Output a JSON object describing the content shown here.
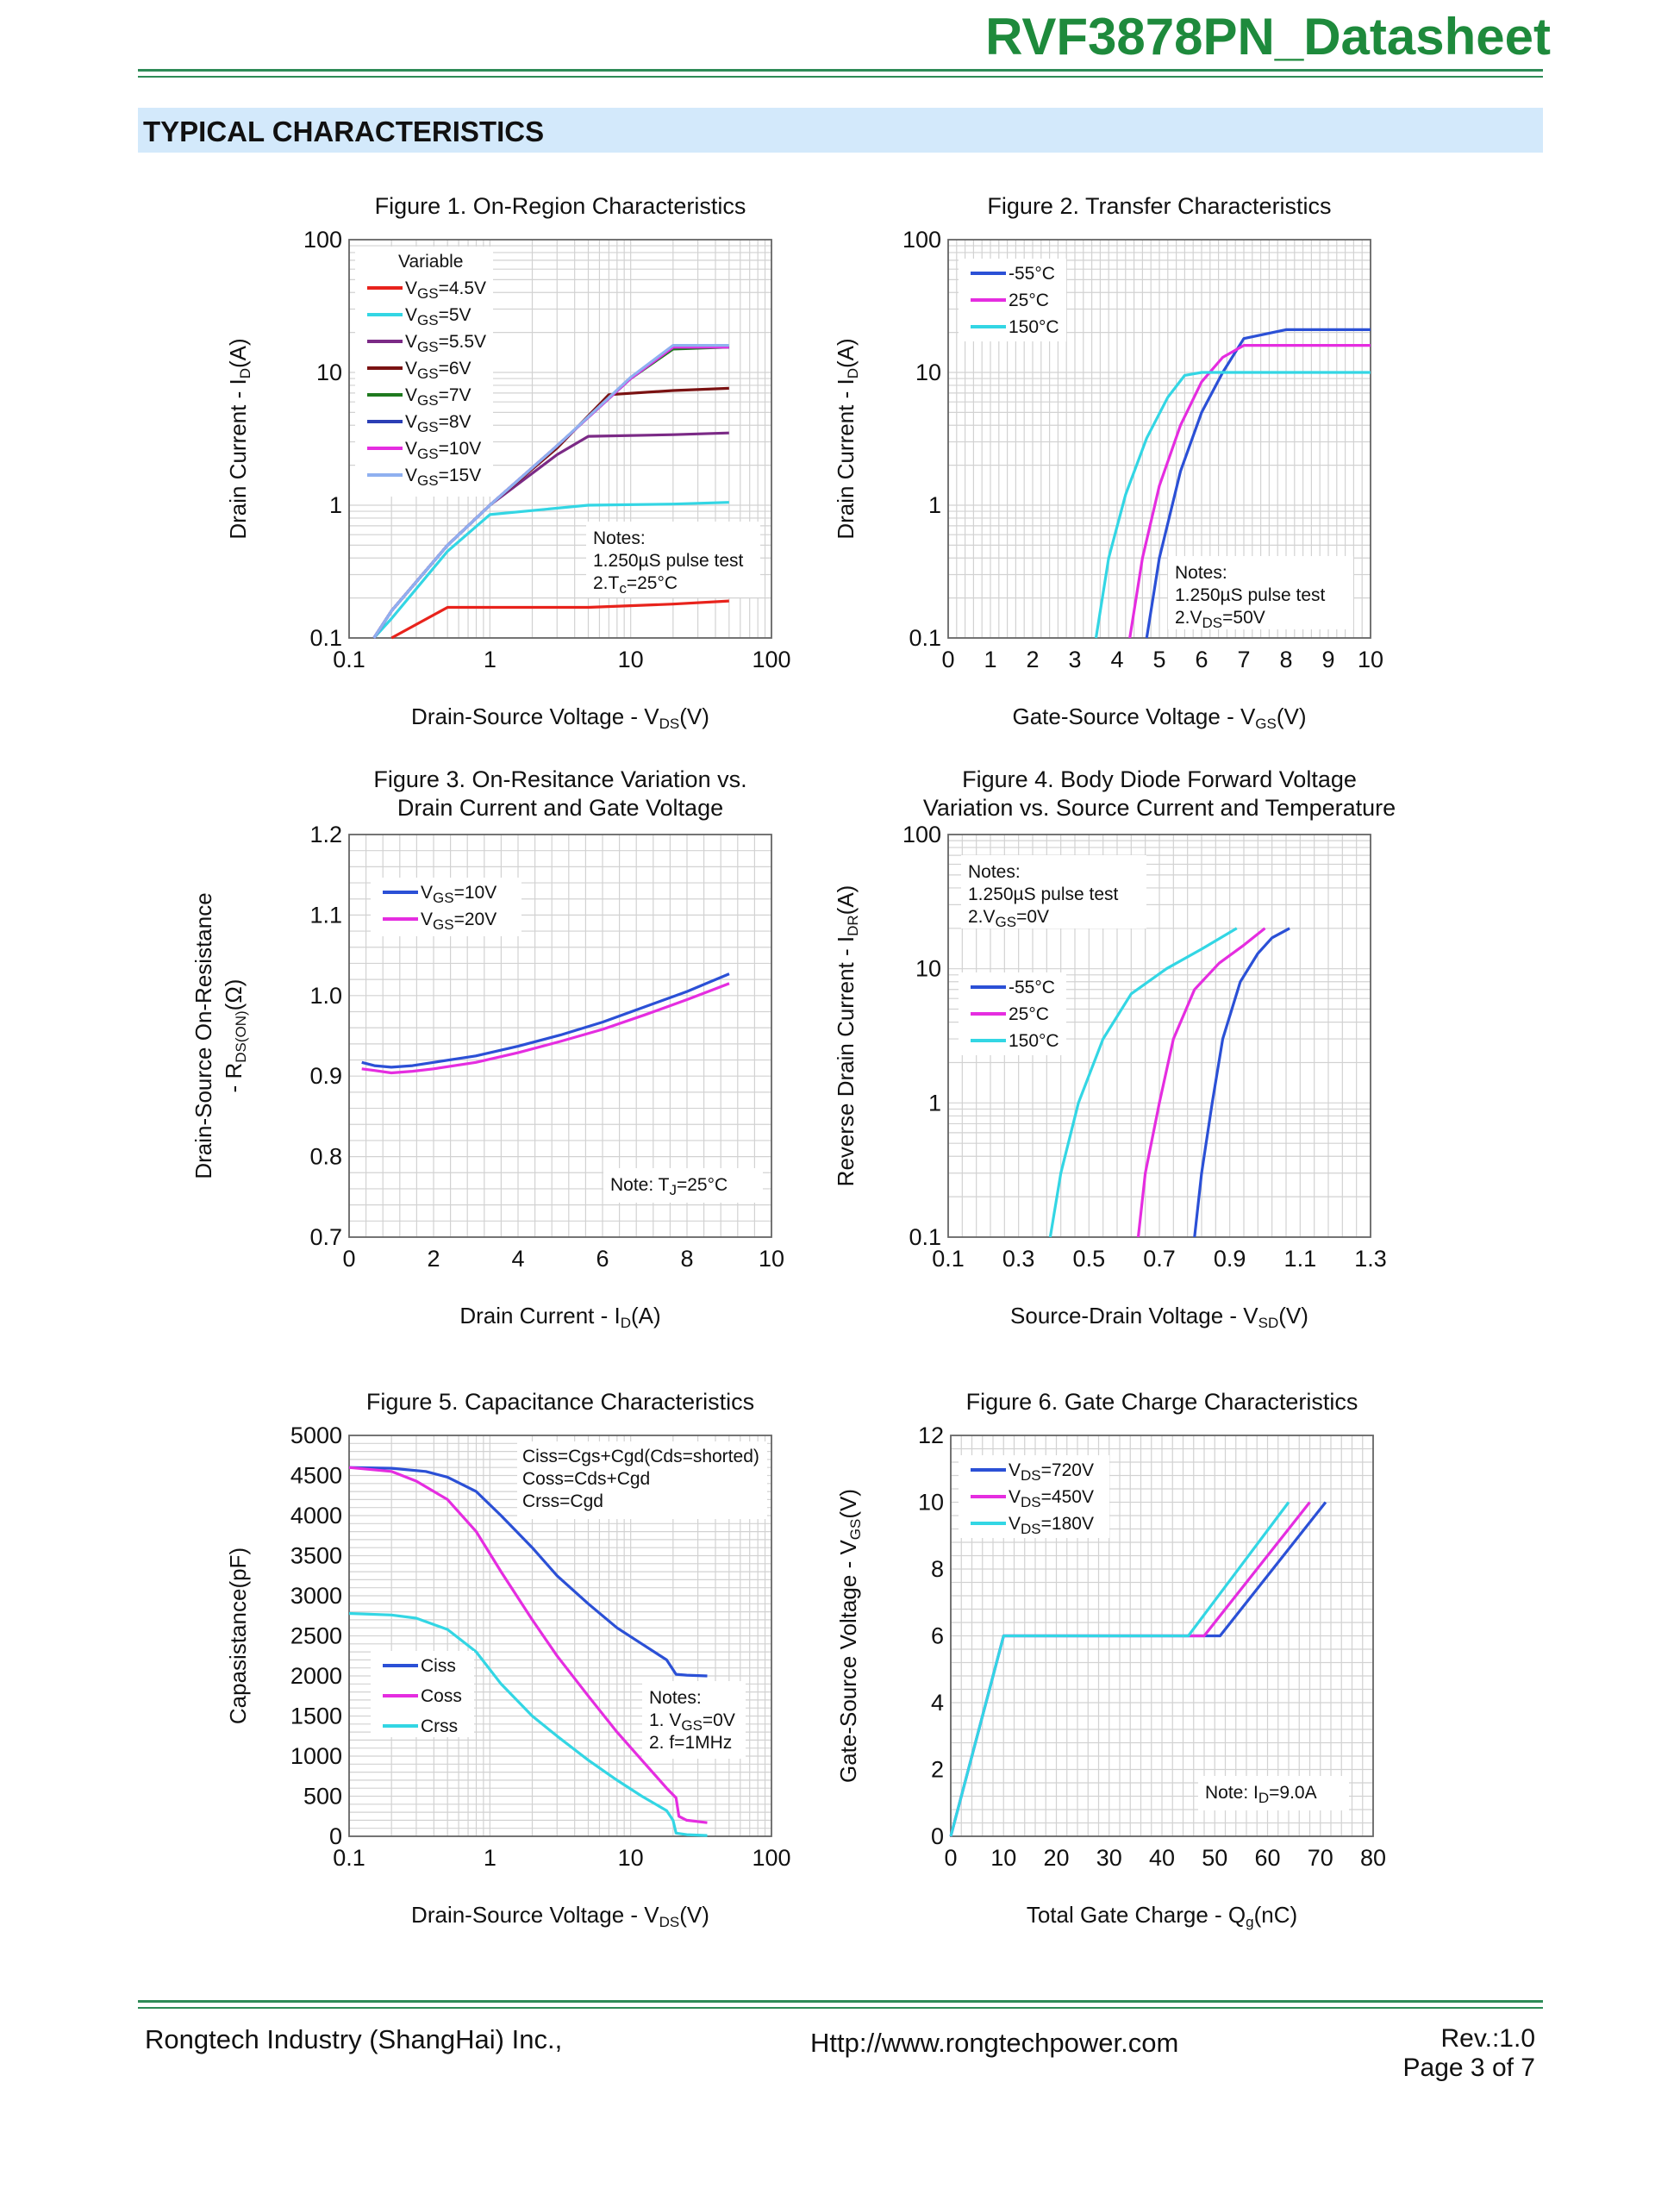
{
  "header": {
    "doc_title": "RVF3878PN_Datasheet",
    "section_title": "TYPICAL CHARACTERISTICS"
  },
  "footer": {
    "company": "Rongtech Industry (ShangHai) Inc.,",
    "url": "Http://www.rongtechpower.com",
    "rev": "Rev.:1.0",
    "page": "Page  3  of  7"
  },
  "chart_data": [
    {
      "id": "fig1",
      "type": "line",
      "title": "Figure 1. On-Region Characteristics",
      "xlabel": "Drain-Source Voltage  -  V",
      "xlabel_sub": "DS",
      "xlabel_tail": "(V)",
      "ylabel": "Drain Current  -  I",
      "ylabel_sub": "D",
      "ylabel_tail": "(A)",
      "xscale": "log",
      "yscale": "log",
      "xlim": [
        0.1,
        100
      ],
      "ylim": [
        0.1,
        100
      ],
      "xticks": [
        0.1,
        1,
        10,
        100
      ],
      "xtick_labels": [
        "0.1",
        "1",
        "10",
        "100"
      ],
      "yticks": [
        0.1,
        1,
        10,
        100
      ],
      "ytick_labels": [
        "0.1",
        "1",
        "10",
        "100"
      ],
      "legend_title": "Variable",
      "notes": [
        "Notes:",
        "1.250µS pulse test",
        "2.Tc=25°C"
      ],
      "notes_position": "bottom-right",
      "series": [
        {
          "name": "VGS=4.5V",
          "color": "#e8231c",
          "x": [
            0.2,
            0.5,
            1,
            5,
            20,
            50
          ],
          "y": [
            0.1,
            0.17,
            0.17,
            0.17,
            0.18,
            0.19
          ]
        },
        {
          "name": "VGS=5V",
          "color": "#33d6e4",
          "x": [
            0.15,
            0.2,
            0.5,
            1,
            5,
            20,
            50
          ],
          "y": [
            0.1,
            0.14,
            0.45,
            0.85,
            1.0,
            1.02,
            1.05
          ]
        },
        {
          "name": "VGS=5.5V",
          "color": "#7b2a86",
          "x": [
            0.15,
            0.2,
            0.5,
            1,
            3,
            5,
            20,
            50
          ],
          "y": [
            0.1,
            0.16,
            0.5,
            1.0,
            2.4,
            3.3,
            3.4,
            3.5
          ]
        },
        {
          "name": "VGS=6V",
          "color": "#7a1212",
          "x": [
            0.15,
            0.2,
            0.5,
            1,
            3,
            7,
            20,
            50
          ],
          "y": [
            0.1,
            0.16,
            0.5,
            1.0,
            2.7,
            6.8,
            7.3,
            7.6
          ]
        },
        {
          "name": "VGS=7V",
          "color": "#1f7a1f",
          "x": [
            0.15,
            0.2,
            0.5,
            1,
            3,
            10,
            20,
            50
          ],
          "y": [
            0.1,
            0.16,
            0.5,
            1.0,
            2.8,
            9.0,
            15,
            15.5
          ]
        },
        {
          "name": "VGS=8V",
          "color": "#2b3fb5",
          "x": [
            0.15,
            0.2,
            0.5,
            1,
            3,
            10,
            20,
            50
          ],
          "y": [
            0.1,
            0.16,
            0.5,
            1.0,
            2.8,
            9.0,
            15.5,
            15.5
          ]
        },
        {
          "name": "VGS=10V",
          "color": "#e52de0",
          "x": [
            0.15,
            0.2,
            0.5,
            1,
            3,
            10,
            20,
            50
          ],
          "y": [
            0.1,
            0.16,
            0.5,
            1.0,
            2.8,
            9.0,
            15.5,
            15.5
          ]
        },
        {
          "name": "VGS=15V",
          "color": "#8fb0f0",
          "x": [
            0.15,
            0.2,
            0.5,
            1,
            3,
            10,
            20,
            50
          ],
          "y": [
            0.1,
            0.16,
            0.5,
            1.0,
            2.8,
            9.2,
            16,
            16
          ]
        }
      ]
    },
    {
      "id": "fig2",
      "type": "line",
      "title": "Figure 2. Transfer Characteristics",
      "xlabel": "Gate-Source Voltage  -  V",
      "xlabel_sub": "GS",
      "xlabel_tail": "(V)",
      "ylabel": "Drain Current  -  I",
      "ylabel_sub": "D",
      "ylabel_tail": "(A)",
      "xscale": "linear",
      "yscale": "log",
      "xlim": [
        0,
        10
      ],
      "ylim": [
        0.1,
        100
      ],
      "xticks": [
        0,
        1,
        2,
        3,
        4,
        5,
        6,
        7,
        8,
        9,
        10
      ],
      "xtick_labels": [
        "0",
        "1",
        "2",
        "3",
        "4",
        "5",
        "6",
        "7",
        "8",
        "9",
        "10"
      ],
      "yticks": [
        0.1,
        1,
        10,
        100
      ],
      "ytick_labels": [
        "0.1",
        "1",
        "10",
        "100"
      ],
      "notes": [
        "Notes:",
        "1.250µS pulse test",
        "2.VDS=50V"
      ],
      "notes_position": "bottom-right",
      "series": [
        {
          "name": "-55°C",
          "color": "#2b50d6",
          "x": [
            4.7,
            5.0,
            5.5,
            6.0,
            6.5,
            7.0,
            8.0,
            10.0
          ],
          "y": [
            0.1,
            0.4,
            1.8,
            5.0,
            10,
            18,
            21,
            21
          ]
        },
        {
          "name": "25°C",
          "color": "#e52de0",
          "x": [
            4.3,
            4.6,
            5.0,
            5.5,
            6.0,
            6.5,
            7.0,
            10.0
          ],
          "y": [
            0.1,
            0.4,
            1.4,
            4.0,
            8.5,
            13,
            16,
            16
          ]
        },
        {
          "name": "150°C",
          "color": "#33d6e4",
          "x": [
            3.5,
            3.8,
            4.2,
            4.7,
            5.2,
            5.6,
            6.0,
            10.0
          ],
          "y": [
            0.1,
            0.4,
            1.2,
            3.2,
            6.5,
            9.5,
            10,
            10
          ]
        }
      ]
    },
    {
      "id": "fig3",
      "type": "line",
      "title": "Figure 3. On-Resitance Variation vs.",
      "title2": "Drain Current and Gate Voltage",
      "xlabel": "Drain Current  -  I",
      "xlabel_sub": "D",
      "xlabel_tail": "(A)",
      "ylabel": "Drain-Source On-Resistance",
      "ylabel2": "-  R",
      "ylabel2_sub": "DS(ON)",
      "ylabel2_tail": "(Ω)",
      "xscale": "linear",
      "yscale": "linear",
      "xlim": [
        0,
        10
      ],
      "ylim": [
        0.7,
        1.2
      ],
      "xticks": [
        0,
        2,
        4,
        6,
        8,
        10
      ],
      "xtick_labels": [
        "0",
        "2",
        "4",
        "6",
        "8",
        "10"
      ],
      "yticks": [
        0.7,
        0.8,
        0.9,
        1.0,
        1.1,
        1.2
      ],
      "ytick_labels": [
        "0.7",
        "0.8",
        "0.9",
        "1.0",
        "1.1",
        "1.2"
      ],
      "notes": [
        "Note: TJ=25°C"
      ],
      "notes_position": "bottom-right",
      "series": [
        {
          "name": "VGS=10V",
          "color": "#2b50d6",
          "x": [
            0.3,
            0.6,
            1.0,
            1.5,
            2.0,
            3.0,
            4.0,
            5.0,
            6.0,
            7.0,
            8.0,
            9.0
          ],
          "y": [
            0.917,
            0.913,
            0.911,
            0.913,
            0.917,
            0.925,
            0.937,
            0.951,
            0.967,
            0.986,
            1.005,
            1.027
          ]
        },
        {
          "name": "VGS=20V",
          "color": "#e52de0",
          "x": [
            0.3,
            0.6,
            1.0,
            1.5,
            2.0,
            3.0,
            4.0,
            5.0,
            6.0,
            7.0,
            8.0,
            9.0
          ],
          "y": [
            0.909,
            0.907,
            0.904,
            0.906,
            0.909,
            0.917,
            0.929,
            0.943,
            0.958,
            0.976,
            0.995,
            1.015
          ]
        }
      ]
    },
    {
      "id": "fig4",
      "type": "line",
      "title": "Figure 4. Body Diode Forward Voltage",
      "title2": "Variation vs. Source Current and Temperature",
      "xlabel": "Source-Drain Voltage  -  V",
      "xlabel_sub": "SD",
      "xlabel_tail": "(V)",
      "ylabel": "Reverse Drain Current  -  I",
      "ylabel_sub": "DR",
      "ylabel_tail": "(A)",
      "xscale": "linear",
      "yscale": "log",
      "xlim": [
        0.1,
        1.3
      ],
      "ylim": [
        0.1,
        100
      ],
      "xticks": [
        0.1,
        0.3,
        0.5,
        0.7,
        0.9,
        1.1,
        1.3
      ],
      "xtick_labels": [
        "0.1",
        "0.3",
        "0.5",
        "0.7",
        "0.9",
        "1.1",
        "1.3"
      ],
      "yticks": [
        0.1,
        1,
        10,
        100
      ],
      "ytick_labels": [
        "0.1",
        "1",
        "10",
        "100"
      ],
      "notes": [
        "Notes:",
        "1.250µS pulse test",
        "2.VGS=0V"
      ],
      "notes_position": "top-left",
      "series": [
        {
          "name": "-55°C",
          "color": "#2b50d6",
          "x": [
            0.8,
            0.82,
            0.85,
            0.88,
            0.93,
            0.98,
            1.02,
            1.07
          ],
          "y": [
            0.1,
            0.3,
            1.0,
            3.0,
            8.0,
            13,
            17,
            20
          ]
        },
        {
          "name": "25°C",
          "color": "#e52de0",
          "x": [
            0.64,
            0.66,
            0.7,
            0.74,
            0.8,
            0.87,
            0.94,
            1.0
          ],
          "y": [
            0.1,
            0.3,
            1.0,
            3.0,
            7.0,
            11,
            15,
            20
          ]
        },
        {
          "name": "150°C",
          "color": "#33d6e4",
          "x": [
            0.39,
            0.42,
            0.47,
            0.54,
            0.62,
            0.72,
            0.82,
            0.92
          ],
          "y": [
            0.1,
            0.3,
            1.0,
            3.0,
            6.5,
            10,
            14,
            20
          ]
        }
      ]
    },
    {
      "id": "fig5",
      "type": "line",
      "title": "Figure 5. Capacitance Characteristics",
      "xlabel": "Drain-Source Voltage  -  V",
      "xlabel_sub": "DS",
      "xlabel_tail": "(V)",
      "ylabel": "Capasistance(pF)",
      "xscale": "log",
      "yscale": "linear",
      "xlim": [
        0.1,
        100
      ],
      "ylim": [
        0,
        5000
      ],
      "xticks": [
        0.1,
        1,
        10,
        100
      ],
      "xtick_labels": [
        "0.1",
        "1",
        "10",
        "100"
      ],
      "yticks": [
        0,
        500,
        1000,
        1500,
        2000,
        2500,
        3000,
        3500,
        4000,
        4500,
        5000
      ],
      "ytick_labels": [
        "0",
        "500",
        "1000",
        "1500",
        "2000",
        "2500",
        "3000",
        "3500",
        "4000",
        "4500",
        "5000"
      ],
      "definitions": [
        "Ciss=Cgs+Cgd(Cds=shorted)",
        "Coss=Cds+Cgd",
        "Crss=Cgd"
      ],
      "notes": [
        "Notes:",
        "1. VGS=0V",
        "2. f=1MHz"
      ],
      "notes_position": "bottom-right",
      "series": [
        {
          "name": "Ciss",
          "color": "#2b50d6",
          "x": [
            0.1,
            0.2,
            0.35,
            0.5,
            0.8,
            1.2,
            2,
            3,
            5,
            8,
            12,
            18,
            21,
            25,
            35
          ],
          "y": [
            4600,
            4590,
            4550,
            4480,
            4300,
            4000,
            3600,
            3250,
            2900,
            2600,
            2400,
            2200,
            2020,
            2010,
            2000
          ]
        },
        {
          "name": "Coss",
          "color": "#e52de0",
          "x": [
            0.1,
            0.2,
            0.3,
            0.5,
            0.8,
            1.2,
            2,
            3,
            5,
            8,
            12,
            18,
            21,
            22,
            25,
            35
          ],
          "y": [
            4600,
            4550,
            4430,
            4200,
            3800,
            3300,
            2700,
            2250,
            1750,
            1300,
            950,
            600,
            480,
            250,
            200,
            170
          ]
        },
        {
          "name": "Crss",
          "color": "#33d6e4",
          "x": [
            0.1,
            0.2,
            0.3,
            0.5,
            0.8,
            1.2,
            2,
            3,
            5,
            8,
            12,
            18,
            20,
            21,
            25,
            35
          ],
          "y": [
            2780,
            2760,
            2720,
            2580,
            2300,
            1900,
            1500,
            1250,
            950,
            700,
            500,
            320,
            200,
            40,
            20,
            10
          ]
        }
      ]
    },
    {
      "id": "fig6",
      "type": "line",
      "title": "Figure 6. Gate Charge Characteristics",
      "xlabel": "Total Gate Charge  -  Q",
      "xlabel_sub": "g",
      "xlabel_tail": "(nC)",
      "ylabel": "Gate-Source Voltage  -  V",
      "ylabel_sub": "GS",
      "ylabel_tail": "(V)",
      "xscale": "linear",
      "yscale": "linear",
      "xlim": [
        0,
        80
      ],
      "ylim": [
        0,
        12
      ],
      "xticks": [
        0,
        10,
        20,
        30,
        40,
        50,
        60,
        70,
        80
      ],
      "xtick_labels": [
        "0",
        "10",
        "20",
        "30",
        "40",
        "50",
        "60",
        "70",
        "80"
      ],
      "yticks": [
        0,
        2,
        4,
        6,
        8,
        10,
        12
      ],
      "ytick_labels": [
        "0",
        "2",
        "4",
        "6",
        "8",
        "10",
        "12"
      ],
      "notes": [
        "Note: ID=9.0A"
      ],
      "notes_position": "bottom-right",
      "series": [
        {
          "name": "VDS=720V",
          "color": "#2b50d6",
          "x": [
            0,
            10,
            51,
            71
          ],
          "y": [
            0,
            6,
            6,
            10
          ]
        },
        {
          "name": "VDS=450V",
          "color": "#e52de0",
          "x": [
            0,
            10,
            48,
            68
          ],
          "y": [
            0,
            6,
            6,
            10
          ]
        },
        {
          "name": "VDS=180V",
          "color": "#33d6e4",
          "x": [
            0,
            10,
            45,
            64
          ],
          "y": [
            0,
            6,
            6,
            10
          ]
        }
      ]
    }
  ]
}
